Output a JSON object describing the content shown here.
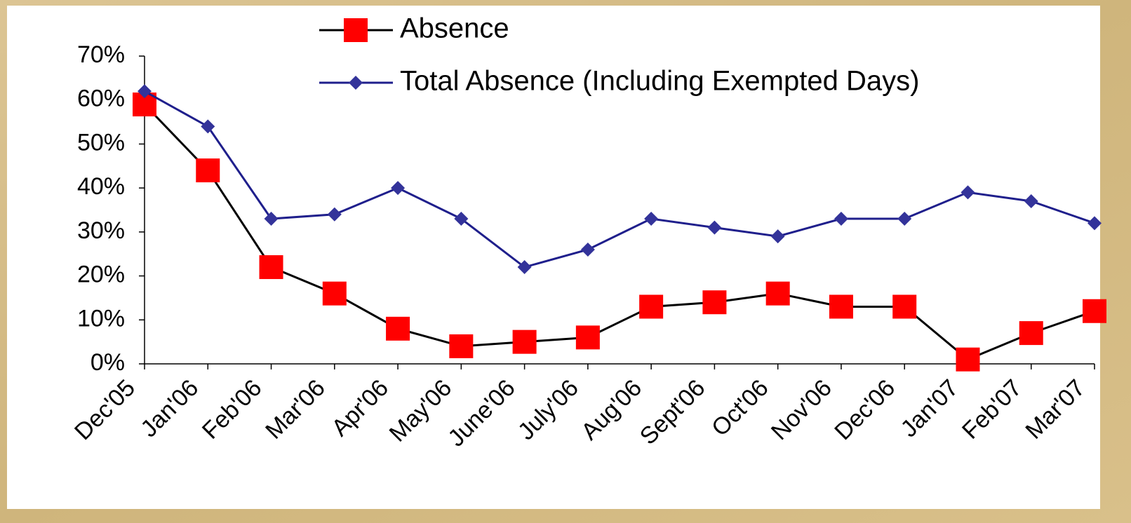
{
  "chart_data": {
    "type": "line",
    "categories": [
      "Dec'05",
      "Jan'06",
      "Feb'06",
      "Mar'06",
      "Apr'06",
      "May'06",
      "June'06",
      "July'06",
      "Aug'06",
      "Sept'06",
      "Oct'06",
      "Nov'06",
      "Dec'06",
      "Jan'07",
      "Feb'07",
      "Mar'07"
    ],
    "series": [
      {
        "name": "Absence",
        "color": "#000000",
        "marker_color": "#ff0000",
        "marker": "square",
        "values": [
          59,
          44,
          22,
          16,
          8,
          4,
          5,
          6,
          13,
          14,
          16,
          13,
          13,
          1,
          7,
          12
        ]
      },
      {
        "name": "Total Absence (Including Exempted Days)",
        "color": "#1f1f8c",
        "marker_color": "#33339a",
        "marker": "diamond",
        "values": [
          62,
          54,
          33,
          34,
          40,
          33,
          22,
          26,
          33,
          31,
          29,
          33,
          33,
          39,
          37,
          32
        ]
      }
    ],
    "ylim": [
      0,
      70
    ],
    "yticks": [
      {
        "value": 0,
        "label": "0%"
      },
      {
        "value": 10,
        "label": "10%"
      },
      {
        "value": 20,
        "label": "20%"
      },
      {
        "value": 30,
        "label": "30%"
      },
      {
        "value": 40,
        "label": "40%"
      },
      {
        "value": 50,
        "label": "50%"
      },
      {
        "value": 60,
        "label": "60%"
      },
      {
        "value": 70,
        "label": "70%"
      }
    ],
    "grid": false,
    "legend": "top"
  }
}
